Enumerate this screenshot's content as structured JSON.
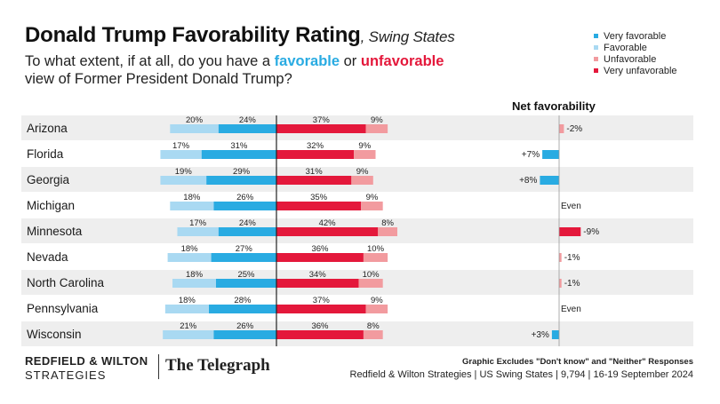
{
  "header": {
    "title": "Donald Trump Favorability Rating",
    "title_suffix": ", Swing States",
    "question_part1": "To what extent, if at all, do you have a ",
    "question_kw_favorable": "favorable",
    "question_or": " or ",
    "question_kw_unfavorable": "unfavorable",
    "question_part2": "view of Former President Donald Trump?"
  },
  "colors": {
    "very_favorable": "#29abe2",
    "favorable": "#a9d9f2",
    "unfavorable": "#f29b9f",
    "very_unfavorable": "#e4183b",
    "net_positive": "#29abe2",
    "net_negative_small": "#f29b9f",
    "net_negative": "#e4183b"
  },
  "legend": [
    {
      "label": "Very favorable",
      "color": "#29abe2"
    },
    {
      "label": "Favorable",
      "color": "#a9d9f2"
    },
    {
      "label": "Unfavorable",
      "color": "#f29b9f"
    },
    {
      "label": "Very unfavorable",
      "color": "#e4183b"
    }
  ],
  "net_heading": "Net favorability",
  "chart_data": {
    "type": "bar",
    "subtype": "diverging-stacked-horizontal",
    "title": "Donald Trump Favorability Rating, Swing States",
    "categories": [
      "Arizona",
      "Florida",
      "Georgia",
      "Michigan",
      "Minnesota",
      "Nevada",
      "North Carolina",
      "Pennsylvania",
      "Wisconsin"
    ],
    "series": [
      {
        "name": "Favorable",
        "values": [
          20,
          17,
          19,
          18,
          17,
          18,
          18,
          18,
          21
        ]
      },
      {
        "name": "Very favorable",
        "values": [
          24,
          31,
          29,
          26,
          24,
          27,
          25,
          28,
          26
        ]
      },
      {
        "name": "Very unfavorable",
        "values": [
          37,
          32,
          31,
          35,
          42,
          36,
          34,
          37,
          36
        ]
      },
      {
        "name": "Unfavorable",
        "values": [
          9,
          9,
          9,
          9,
          8,
          10,
          10,
          9,
          8
        ]
      }
    ],
    "net_favorability": {
      "values": [
        -2,
        7,
        8,
        0,
        -9,
        -1,
        -1,
        0,
        3
      ],
      "labels": [
        "-2%",
        "+7%",
        "+8%",
        "Even",
        "-9%",
        "-1%",
        "-1%",
        "Even",
        "+3%"
      ]
    },
    "value_labels": {
      "favorable": [
        "20%",
        "17%",
        "19%",
        "18%",
        "17%",
        "18%",
        "18%",
        "18%",
        "21%"
      ],
      "very_favorable": [
        "24%",
        "31%",
        "29%",
        "26%",
        "24%",
        "27%",
        "25%",
        "28%",
        "26%"
      ],
      "very_unfavorable": [
        "37%",
        "32%",
        "31%",
        "35%",
        "42%",
        "36%",
        "34%",
        "37%",
        "36%"
      ],
      "unfavorable": [
        "9%",
        "9%",
        "9%",
        "9%",
        "8%",
        "10%",
        "10%",
        "9%",
        "8%"
      ]
    },
    "legend_position": "top-right"
  },
  "footer": {
    "brand_line1": "REDFIELD & WILTON",
    "brand_line2": "STRATEGIES",
    "partner": "The Telegraph",
    "note": "Graphic Excludes \"Don't know\" and \"Neither\" Responses",
    "source": "Redfield & Wilton Strategies | US Swing States | 9,794 | 16-19 September 2024"
  }
}
